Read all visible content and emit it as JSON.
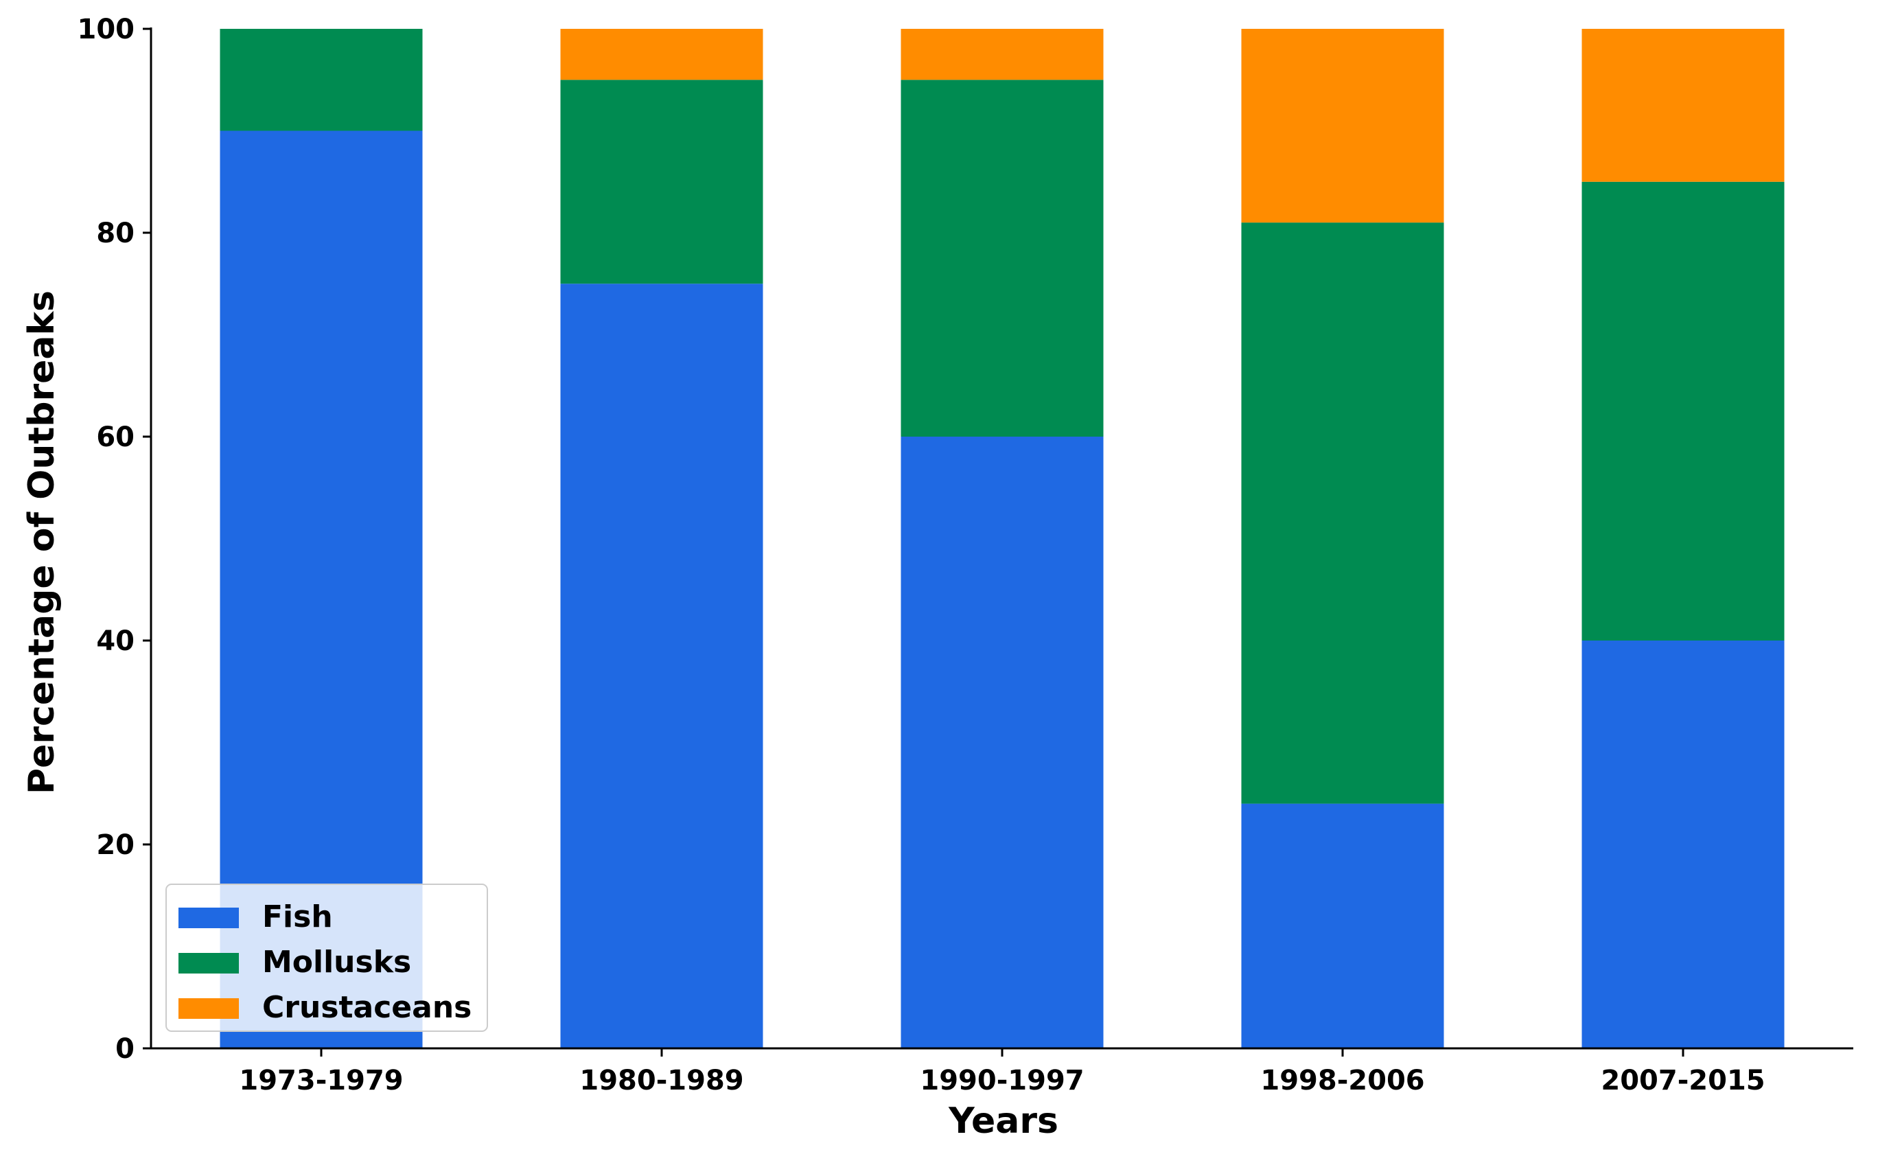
{
  "chart_data": {
    "type": "bar",
    "stacked": true,
    "title": "",
    "xlabel": "Years",
    "ylabel": "Percentage of Outbreaks",
    "ylim": [
      0,
      100
    ],
    "yticks": [
      "0",
      "20",
      "40",
      "60",
      "80",
      "100"
    ],
    "grid": false,
    "legend_position": "bottom-left",
    "categories": [
      "1973-1979",
      "1980-1989",
      "1990-1997",
      "1998-2006",
      "2007-2015"
    ],
    "series": [
      {
        "name": "Fish",
        "color": "#1f69e3",
        "values": [
          90,
          75,
          60,
          24,
          40
        ]
      },
      {
        "name": "Mollusks",
        "color": "#008b51",
        "values": [
          10,
          20,
          35,
          57,
          45
        ]
      },
      {
        "name": "Crustaceans",
        "color": "#ff8c00",
        "values": [
          0,
          5,
          5,
          19,
          15
        ]
      }
    ]
  }
}
